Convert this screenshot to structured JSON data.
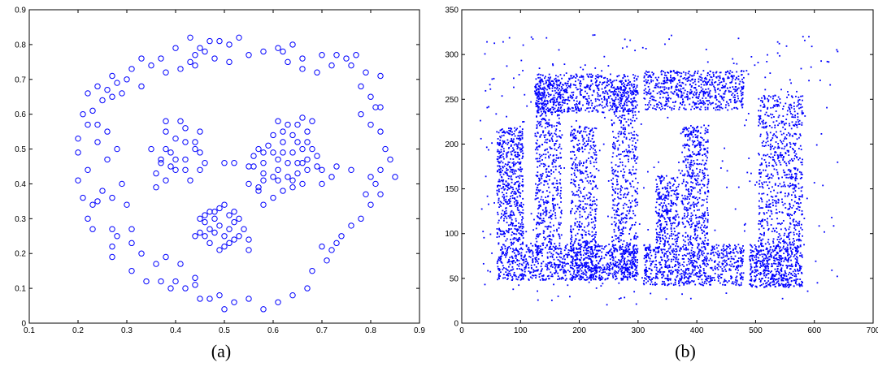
{
  "chart_data": [
    {
      "type": "scatter",
      "caption": "(a)",
      "marker": "circle-open",
      "color": "#0000ff",
      "xlim": [
        0.1,
        0.9
      ],
      "ylim": [
        0,
        0.9
      ],
      "xticks": [
        0.1,
        0.2,
        0.3,
        0.4,
        0.5,
        0.6,
        0.7,
        0.8,
        0.9
      ],
      "yticks": [
        0,
        0.1,
        0.2,
        0.3,
        0.4,
        0.5,
        0.6,
        0.7,
        0.8,
        0.9
      ],
      "xticklabels": [
        "0.1",
        "0.2",
        "0.3",
        "0.4",
        "0.5",
        "0.6",
        "0.7",
        "0.8",
        "0.9"
      ],
      "yticklabels": [
        "0",
        "0.1",
        "0.2",
        "0.3",
        "0.4",
        "0.5",
        "0.6",
        "0.7",
        "0.8",
        "0.9"
      ],
      "points": [
        [
          0.53,
          0.82
        ],
        [
          0.43,
          0.82
        ],
        [
          0.47,
          0.81
        ],
        [
          0.49,
          0.81
        ],
        [
          0.51,
          0.8
        ],
        [
          0.45,
          0.79
        ],
        [
          0.4,
          0.79
        ],
        [
          0.64,
          0.8
        ],
        [
          0.61,
          0.79
        ],
        [
          0.58,
          0.78
        ],
        [
          0.55,
          0.77
        ],
        [
          0.46,
          0.78
        ],
        [
          0.43,
          0.75
        ],
        [
          0.44,
          0.77
        ],
        [
          0.48,
          0.76
        ],
        [
          0.51,
          0.75
        ],
        [
          0.37,
          0.76
        ],
        [
          0.38,
          0.72
        ],
        [
          0.33,
          0.76
        ],
        [
          0.35,
          0.74
        ],
        [
          0.41,
          0.73
        ],
        [
          0.44,
          0.74
        ],
        [
          0.62,
          0.78
        ],
        [
          0.66,
          0.76
        ],
        [
          0.63,
          0.75
        ],
        [
          0.7,
          0.77
        ],
        [
          0.73,
          0.77
        ],
        [
          0.72,
          0.74
        ],
        [
          0.75,
          0.76
        ],
        [
          0.77,
          0.77
        ],
        [
          0.76,
          0.74
        ],
        [
          0.79,
          0.72
        ],
        [
          0.82,
          0.71
        ],
        [
          0.66,
          0.73
        ],
        [
          0.69,
          0.72
        ],
        [
          0.78,
          0.68
        ],
        [
          0.8,
          0.65
        ],
        [
          0.81,
          0.62
        ],
        [
          0.82,
          0.62
        ],
        [
          0.78,
          0.6
        ],
        [
          0.8,
          0.57
        ],
        [
          0.82,
          0.55
        ],
        [
          0.83,
          0.5
        ],
        [
          0.84,
          0.47
        ],
        [
          0.85,
          0.42
        ],
        [
          0.82,
          0.44
        ],
        [
          0.8,
          0.42
        ],
        [
          0.81,
          0.4
        ],
        [
          0.82,
          0.37
        ],
        [
          0.79,
          0.37
        ],
        [
          0.8,
          0.34
        ],
        [
          0.78,
          0.3
        ],
        [
          0.76,
          0.28
        ],
        [
          0.74,
          0.25
        ],
        [
          0.73,
          0.23
        ],
        [
          0.72,
          0.21
        ],
        [
          0.7,
          0.22
        ],
        [
          0.71,
          0.18
        ],
        [
          0.68,
          0.15
        ],
        [
          0.67,
          0.1
        ],
        [
          0.64,
          0.08
        ],
        [
          0.61,
          0.06
        ],
        [
          0.58,
          0.04
        ],
        [
          0.55,
          0.07
        ],
        [
          0.52,
          0.06
        ],
        [
          0.5,
          0.04
        ],
        [
          0.49,
          0.08
        ],
        [
          0.47,
          0.07
        ],
        [
          0.45,
          0.07
        ],
        [
          0.44,
          0.11
        ],
        [
          0.44,
          0.13
        ],
        [
          0.42,
          0.1
        ],
        [
          0.39,
          0.1
        ],
        [
          0.37,
          0.12
        ],
        [
          0.34,
          0.12
        ],
        [
          0.31,
          0.15
        ],
        [
          0.38,
          0.19
        ],
        [
          0.33,
          0.2
        ],
        [
          0.4,
          0.12
        ],
        [
          0.41,
          0.17
        ],
        [
          0.36,
          0.17
        ],
        [
          0.31,
          0.23
        ],
        [
          0.31,
          0.27
        ],
        [
          0.28,
          0.25
        ],
        [
          0.27,
          0.19
        ],
        [
          0.27,
          0.22
        ],
        [
          0.27,
          0.27
        ],
        [
          0.23,
          0.27
        ],
        [
          0.22,
          0.3
        ],
        [
          0.21,
          0.36
        ],
        [
          0.2,
          0.41
        ],
        [
          0.2,
          0.49
        ],
        [
          0.2,
          0.53
        ],
        [
          0.21,
          0.6
        ],
        [
          0.23,
          0.61
        ],
        [
          0.24,
          0.57
        ],
        [
          0.24,
          0.52
        ],
        [
          0.22,
          0.57
        ],
        [
          0.22,
          0.66
        ],
        [
          0.24,
          0.68
        ],
        [
          0.26,
          0.67
        ],
        [
          0.27,
          0.71
        ],
        [
          0.27,
          0.65
        ],
        [
          0.25,
          0.64
        ],
        [
          0.28,
          0.69
        ],
        [
          0.29,
          0.66
        ],
        [
          0.3,
          0.7
        ],
        [
          0.31,
          0.73
        ],
        [
          0.33,
          0.68
        ],
        [
          0.26,
          0.55
        ],
        [
          0.28,
          0.5
        ],
        [
          0.26,
          0.47
        ],
        [
          0.25,
          0.38
        ],
        [
          0.22,
          0.44
        ],
        [
          0.24,
          0.35
        ],
        [
          0.23,
          0.34
        ],
        [
          0.27,
          0.36
        ],
        [
          0.29,
          0.4
        ],
        [
          0.3,
          0.34
        ],
        [
          0.36,
          0.39
        ],
        [
          0.38,
          0.41
        ],
        [
          0.38,
          0.58
        ],
        [
          0.41,
          0.58
        ],
        [
          0.42,
          0.56
        ],
        [
          0.45,
          0.55
        ],
        [
          0.4,
          0.53
        ],
        [
          0.38,
          0.55
        ],
        [
          0.42,
          0.52
        ],
        [
          0.39,
          0.49
        ],
        [
          0.38,
          0.5
        ],
        [
          0.4,
          0.47
        ],
        [
          0.42,
          0.47
        ],
        [
          0.45,
          0.49
        ],
        [
          0.44,
          0.5
        ],
        [
          0.44,
          0.52
        ],
        [
          0.42,
          0.44
        ],
        [
          0.4,
          0.44
        ],
        [
          0.45,
          0.44
        ],
        [
          0.43,
          0.41
        ],
        [
          0.37,
          0.46
        ],
        [
          0.36,
          0.43
        ],
        [
          0.35,
          0.5
        ],
        [
          0.37,
          0.47
        ],
        [
          0.39,
          0.45
        ],
        [
          0.46,
          0.46
        ],
        [
          0.5,
          0.46
        ],
        [
          0.52,
          0.46
        ],
        [
          0.61,
          0.58
        ],
        [
          0.63,
          0.57
        ],
        [
          0.65,
          0.57
        ],
        [
          0.66,
          0.59
        ],
        [
          0.68,
          0.58
        ],
        [
          0.67,
          0.55
        ],
        [
          0.64,
          0.54
        ],
        [
          0.62,
          0.55
        ],
        [
          0.6,
          0.54
        ],
        [
          0.62,
          0.52
        ],
        [
          0.65,
          0.52
        ],
        [
          0.67,
          0.52
        ],
        [
          0.68,
          0.5
        ],
        [
          0.66,
          0.5
        ],
        [
          0.64,
          0.49
        ],
        [
          0.62,
          0.49
        ],
        [
          0.61,
          0.47
        ],
        [
          0.63,
          0.46
        ],
        [
          0.65,
          0.46
        ],
        [
          0.67,
          0.47
        ],
        [
          0.69,
          0.48
        ],
        [
          0.69,
          0.45
        ],
        [
          0.67,
          0.44
        ],
        [
          0.65,
          0.43
        ],
        [
          0.63,
          0.42
        ],
        [
          0.61,
          0.44
        ],
        [
          0.6,
          0.42
        ],
        [
          0.58,
          0.43
        ],
        [
          0.56,
          0.45
        ],
        [
          0.55,
          0.45
        ],
        [
          0.58,
          0.46
        ],
        [
          0.6,
          0.49
        ],
        [
          0.58,
          0.49
        ],
        [
          0.56,
          0.48
        ],
        [
          0.57,
          0.5
        ],
        [
          0.59,
          0.51
        ],
        [
          0.55,
          0.4
        ],
        [
          0.57,
          0.39
        ],
        [
          0.58,
          0.41
        ],
        [
          0.61,
          0.41
        ],
        [
          0.64,
          0.41
        ],
        [
          0.66,
          0.4
        ],
        [
          0.64,
          0.39
        ],
        [
          0.62,
          0.38
        ],
        [
          0.6,
          0.36
        ],
        [
          0.57,
          0.38
        ],
        [
          0.58,
          0.34
        ],
        [
          0.66,
          0.46
        ],
        [
          0.7,
          0.44
        ],
        [
          0.73,
          0.45
        ],
        [
          0.76,
          0.44
        ],
        [
          0.72,
          0.42
        ],
        [
          0.7,
          0.4
        ],
        [
          0.5,
          0.34
        ],
        [
          0.52,
          0.32
        ],
        [
          0.49,
          0.33
        ],
        [
          0.47,
          0.32
        ],
        [
          0.48,
          0.3
        ],
        [
          0.46,
          0.29
        ],
        [
          0.47,
          0.27
        ],
        [
          0.46,
          0.25
        ],
        [
          0.48,
          0.26
        ],
        [
          0.49,
          0.28
        ],
        [
          0.5,
          0.25
        ],
        [
          0.51,
          0.27
        ],
        [
          0.52,
          0.29
        ],
        [
          0.53,
          0.3
        ],
        [
          0.54,
          0.27
        ],
        [
          0.53,
          0.25
        ],
        [
          0.51,
          0.23
        ],
        [
          0.5,
          0.22
        ],
        [
          0.49,
          0.21
        ],
        [
          0.47,
          0.23
        ],
        [
          0.45,
          0.26
        ],
        [
          0.44,
          0.25
        ],
        [
          0.45,
          0.3
        ],
        [
          0.46,
          0.31
        ],
        [
          0.48,
          0.32
        ],
        [
          0.51,
          0.31
        ],
        [
          0.55,
          0.24
        ],
        [
          0.55,
          0.21
        ],
        [
          0.52,
          0.24
        ]
      ]
    },
    {
      "type": "scatter",
      "caption": "(b)",
      "marker": "dot",
      "color": "#0000ff",
      "xlim": [
        0,
        700
      ],
      "ylim": [
        0,
        350
      ],
      "xticks": [
        0,
        100,
        200,
        300,
        400,
        500,
        600,
        700
      ],
      "yticks": [
        0,
        50,
        100,
        150,
        200,
        250,
        300,
        350
      ],
      "xticklabels": [
        "0",
        "100",
        "200",
        "300",
        "400",
        "500",
        "600",
        "700"
      ],
      "yticklabels": [
        "0",
        "50",
        "100",
        "150",
        "200",
        "250",
        "300",
        "350"
      ],
      "regions": [
        {
          "x": [
            60,
            300
          ],
          "y": [
            48,
            88
          ],
          "n": 900
        },
        {
          "x": [
            60,
            105
          ],
          "y": [
            88,
            218
          ],
          "n": 520
        },
        {
          "x": [
            125,
            170
          ],
          "y": [
            88,
            272
          ],
          "n": 520
        },
        {
          "x": [
            125,
            300
          ],
          "y": [
            235,
            278
          ],
          "n": 620
        },
        {
          "x": [
            185,
            230
          ],
          "y": [
            50,
            220
          ],
          "n": 480
        },
        {
          "x": [
            255,
            300
          ],
          "y": [
            50,
            265
          ],
          "n": 500
        },
        {
          "x": [
            310,
            480
          ],
          "y": [
            238,
            282
          ],
          "n": 620
        },
        {
          "x": [
            310,
            480
          ],
          "y": [
            42,
            88
          ],
          "n": 700
        },
        {
          "x": [
            330,
            370
          ],
          "y": [
            88,
            165
          ],
          "n": 260
        },
        {
          "x": [
            375,
            420
          ],
          "y": [
            88,
            222
          ],
          "n": 440
        },
        {
          "x": [
            490,
            580
          ],
          "y": [
            40,
            88
          ],
          "n": 520
        },
        {
          "x": [
            505,
            580
          ],
          "y": [
            88,
            255
          ],
          "n": 650
        },
        {
          "x": [
            30,
            640
          ],
          "y": [
            20,
            322
          ],
          "n": 380
        }
      ]
    }
  ]
}
